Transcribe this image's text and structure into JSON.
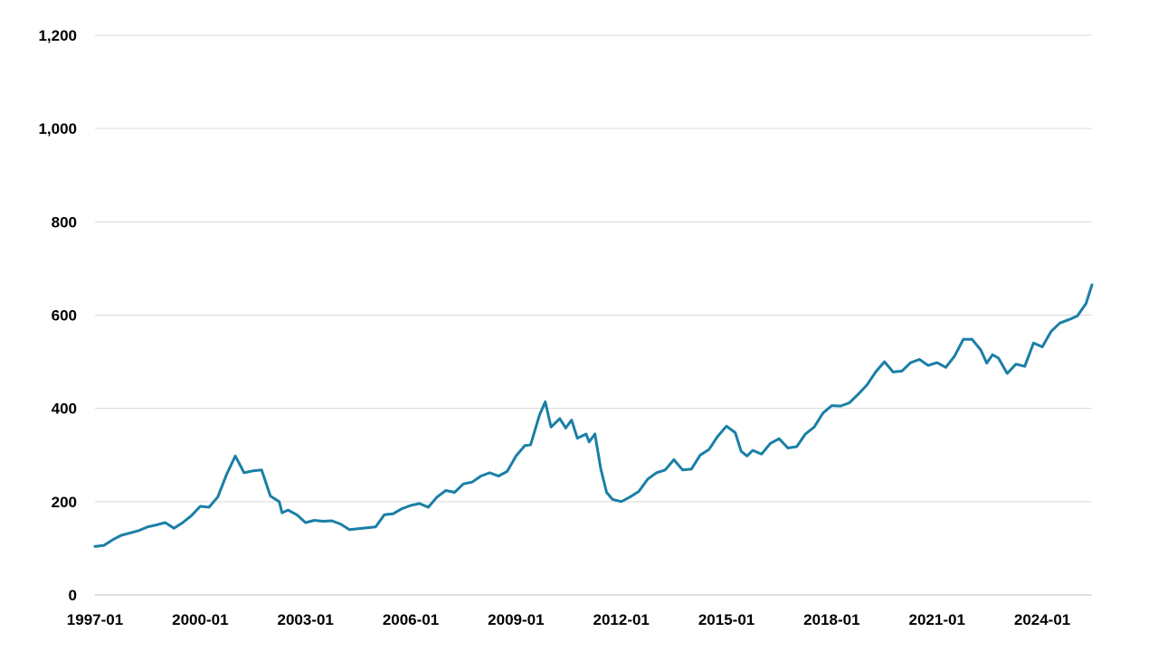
{
  "chart_data": {
    "type": "line",
    "title": "",
    "xlabel": "",
    "ylabel": "",
    "ylim": [
      0,
      1200
    ],
    "y_ticks": [
      0,
      200,
      400,
      600,
      800,
      1000,
      1200
    ],
    "y_tick_labels": [
      "0",
      "200",
      "400",
      "600",
      "800",
      "1,000",
      "1,200"
    ],
    "x_range": [
      "1997-01",
      "2025-06"
    ],
    "x_ticks": [
      "1997-01",
      "2000-01",
      "2003-01",
      "2006-01",
      "2009-01",
      "2012-01",
      "2015-01",
      "2018-01",
      "2021-01",
      "2024-01"
    ],
    "grid": "horizontal",
    "legend": "none",
    "line_color": "#1a7fa6",
    "series": [
      {
        "points": [
          [
            "1997-01",
            104
          ],
          [
            "1997-04",
            106
          ],
          [
            "1997-07",
            118
          ],
          [
            "1997-10",
            128
          ],
          [
            "1998-01",
            133
          ],
          [
            "1998-04",
            138
          ],
          [
            "1998-07",
            146
          ],
          [
            "1998-10",
            150
          ],
          [
            "1999-01",
            155
          ],
          [
            "1999-04",
            143
          ],
          [
            "1999-07",
            155
          ],
          [
            "1999-10",
            170
          ],
          [
            "2000-01",
            190
          ],
          [
            "2000-04",
            188
          ],
          [
            "2000-07",
            210
          ],
          [
            "2000-10",
            258
          ],
          [
            "2001-01",
            298
          ],
          [
            "2001-04",
            262
          ],
          [
            "2001-07",
            266
          ],
          [
            "2001-10",
            268
          ],
          [
            "2002-01",
            212
          ],
          [
            "2002-04",
            200
          ],
          [
            "2002-05",
            176
          ],
          [
            "2002-07",
            182
          ],
          [
            "2002-10",
            172
          ],
          [
            "2003-01",
            155
          ],
          [
            "2003-04",
            160
          ],
          [
            "2003-07",
            158
          ],
          [
            "2003-10",
            159
          ],
          [
            "2004-01",
            152
          ],
          [
            "2004-04",
            140
          ],
          [
            "2004-07",
            142
          ],
          [
            "2004-10",
            144
          ],
          [
            "2005-01",
            146
          ],
          [
            "2005-04",
            172
          ],
          [
            "2005-07",
            174
          ],
          [
            "2005-10",
            185
          ],
          [
            "2006-01",
            192
          ],
          [
            "2006-04",
            196
          ],
          [
            "2006-07",
            188
          ],
          [
            "2006-10",
            210
          ],
          [
            "2007-01",
            224
          ],
          [
            "2007-04",
            220
          ],
          [
            "2007-07",
            238
          ],
          [
            "2007-10",
            242
          ],
          [
            "2008-01",
            255
          ],
          [
            "2008-04",
            262
          ],
          [
            "2008-07",
            255
          ],
          [
            "2008-10",
            265
          ],
          [
            "2009-01",
            298
          ],
          [
            "2009-04",
            320
          ],
          [
            "2009-06",
            322
          ],
          [
            "2009-09",
            385
          ],
          [
            "2009-11",
            414
          ],
          [
            "2010-01",
            360
          ],
          [
            "2010-04",
            378
          ],
          [
            "2010-06",
            358
          ],
          [
            "2010-08",
            375
          ],
          [
            "2010-10",
            336
          ],
          [
            "2011-01",
            345
          ],
          [
            "2011-02",
            328
          ],
          [
            "2011-04",
            345
          ],
          [
            "2011-06",
            270
          ],
          [
            "2011-08",
            220
          ],
          [
            "2011-10",
            205
          ],
          [
            "2012-01",
            200
          ],
          [
            "2012-04",
            210
          ],
          [
            "2012-07",
            222
          ],
          [
            "2012-10",
            248
          ],
          [
            "2013-01",
            262
          ],
          [
            "2013-04",
            268
          ],
          [
            "2013-07",
            290
          ],
          [
            "2013-10",
            268
          ],
          [
            "2014-01",
            270
          ],
          [
            "2014-04",
            300
          ],
          [
            "2014-07",
            312
          ],
          [
            "2014-10",
            340
          ],
          [
            "2015-01",
            362
          ],
          [
            "2015-04",
            348
          ],
          [
            "2015-06",
            308
          ],
          [
            "2015-08",
            298
          ],
          [
            "2015-10",
            310
          ],
          [
            "2016-01",
            302
          ],
          [
            "2016-04",
            325
          ],
          [
            "2016-07",
            335
          ],
          [
            "2016-10",
            315
          ],
          [
            "2017-01",
            318
          ],
          [
            "2017-04",
            345
          ],
          [
            "2017-07",
            360
          ],
          [
            "2017-10",
            390
          ],
          [
            "2018-01",
            406
          ],
          [
            "2018-04",
            405
          ],
          [
            "2018-07",
            412
          ],
          [
            "2018-10",
            430
          ],
          [
            "2019-01",
            450
          ],
          [
            "2019-04",
            478
          ],
          [
            "2019-07",
            500
          ],
          [
            "2019-10",
            478
          ],
          [
            "2020-01",
            480
          ],
          [
            "2020-04",
            498
          ],
          [
            "2020-07",
            505
          ],
          [
            "2020-10",
            492
          ],
          [
            "2021-01",
            498
          ],
          [
            "2021-04",
            488
          ],
          [
            "2021-07",
            512
          ],
          [
            "2021-10",
            548
          ],
          [
            "2022-01",
            548
          ],
          [
            "2022-04",
            525
          ],
          [
            "2022-06",
            497
          ],
          [
            "2022-08",
            515
          ],
          [
            "2022-10",
            508
          ],
          [
            "2023-01",
            475
          ],
          [
            "2023-04",
            495
          ],
          [
            "2023-07",
            490
          ],
          [
            "2023-10",
            540
          ],
          [
            "2024-01",
            532
          ],
          [
            "2024-04",
            565
          ],
          [
            "2024-07",
            583
          ],
          [
            "2024-10",
            590
          ],
          [
            "2025-01",
            598
          ],
          [
            "2025-04",
            625
          ],
          [
            "2025-06",
            665
          ]
        ]
      }
    ]
  }
}
